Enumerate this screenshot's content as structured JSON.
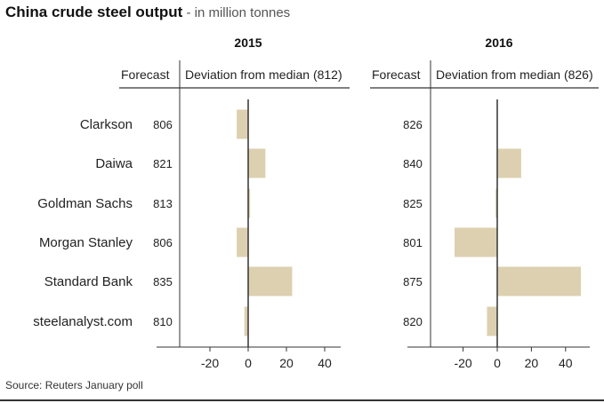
{
  "title": "China crude steel output",
  "subtitle": " - in million tonnes",
  "source": "Source: Reuters January poll",
  "row_labels": [
    "Clarkson",
    "Daiwa",
    "Goldman Sachs",
    "Morgan Stanley",
    "Standard Bank",
    "steelanalyst.com"
  ],
  "colors": {
    "bar": "#dcd0b0",
    "axis": "#333333",
    "text": "#222222"
  },
  "chart_data": [
    {
      "type": "bar",
      "panel": "2015",
      "title": "2015",
      "forecast_header": "Forecast",
      "deviation_header": "Deviation from median (812)",
      "median": 812,
      "categories": [
        "Clarkson",
        "Daiwa",
        "Goldman Sachs",
        "Morgan Stanley",
        "Standard Bank",
        "steelanalyst.com"
      ],
      "forecasts": [
        806,
        821,
        813,
        806,
        835,
        810
      ],
      "values": [
        -6,
        9,
        1,
        -6,
        23,
        -2
      ],
      "xlim": [
        -40,
        45
      ],
      "xticks": [
        -20,
        0,
        20,
        40
      ],
      "xtick_labels": [
        "-20",
        "0",
        "20",
        "40"
      ],
      "grid": false
    },
    {
      "type": "bar",
      "panel": "2016",
      "title": "2016",
      "forecast_header": "Forecast",
      "deviation_header": "Deviation from median (826)",
      "median": 826,
      "categories": [
        "Clarkson",
        "Daiwa",
        "Goldman Sachs",
        "Morgan Stanley",
        "Standard Bank",
        "steelanalyst.com"
      ],
      "forecasts": [
        826,
        840,
        825,
        801,
        875,
        820
      ],
      "values": [
        0,
        14,
        -1,
        -25,
        49,
        -6
      ],
      "xlim": [
        -40,
        45
      ],
      "xticks": [
        -20,
        0,
        20,
        40
      ],
      "xtick_labels": [
        "-20",
        "0",
        "20",
        "40"
      ],
      "grid": false
    }
  ]
}
